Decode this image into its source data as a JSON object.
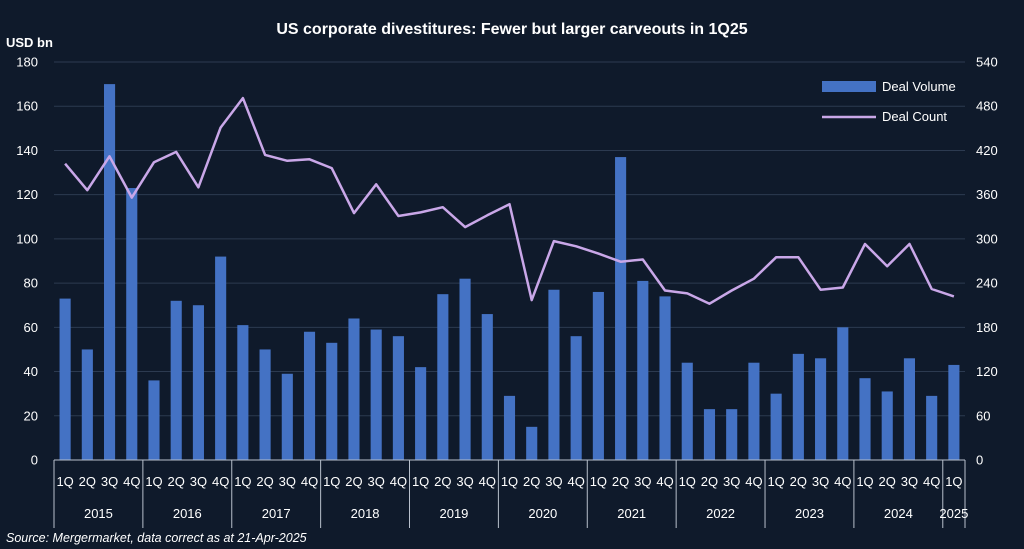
{
  "chart_data": {
    "type": "bar+line",
    "title": "US corporate divestitures: Fewer but larger carveouts in 1Q25",
    "ylabel": "USD bn",
    "ylim": [
      0,
      180
    ],
    "y2lim": [
      0,
      540
    ],
    "yticks": [
      0,
      20,
      40,
      60,
      80,
      100,
      120,
      140,
      160,
      180
    ],
    "y2ticks": [
      0,
      60,
      120,
      180,
      240,
      300,
      360,
      420,
      480,
      540
    ],
    "grid": true,
    "legend_position": "top-right",
    "quarters": [
      "1Q",
      "2Q",
      "3Q",
      "4Q",
      "1Q",
      "2Q",
      "3Q",
      "4Q",
      "1Q",
      "2Q",
      "3Q",
      "4Q",
      "1Q",
      "2Q",
      "3Q",
      "4Q",
      "1Q",
      "2Q",
      "3Q",
      "4Q",
      "1Q",
      "2Q",
      "3Q",
      "4Q",
      "1Q",
      "2Q",
      "3Q",
      "4Q",
      "1Q",
      "2Q",
      "3Q",
      "4Q",
      "1Q",
      "2Q",
      "3Q",
      "4Q",
      "1Q",
      "2Q",
      "3Q",
      "4Q",
      "1Q"
    ],
    "years": [
      "2015",
      "2016",
      "2017",
      "2018",
      "2019",
      "2020",
      "2021",
      "2022",
      "2023",
      "2024",
      "2025"
    ],
    "series": [
      {
        "name": "Deal Volume",
        "kind": "bar",
        "axis": "left",
        "color": "#4472c4",
        "values": [
          73,
          50,
          170,
          123,
          36,
          72,
          70,
          92,
          61,
          50,
          39,
          58,
          53,
          64,
          59,
          56,
          42,
          75,
          82,
          66,
          29,
          15,
          77,
          56,
          76,
          137,
          81,
          74,
          44,
          23,
          23,
          44,
          30,
          48,
          46,
          60,
          37,
          31,
          46,
          29,
          43
        ]
      },
      {
        "name": "Deal Count",
        "kind": "line",
        "axis": "right",
        "color": "#c9a7e8",
        "values": [
          402,
          366,
          412,
          356,
          404,
          418,
          370,
          451,
          491,
          414,
          406,
          408,
          396,
          335,
          374,
          331,
          336,
          343,
          316,
          332,
          347,
          217,
          297,
          290,
          280,
          269,
          272,
          230,
          226,
          212,
          230,
          246,
          275,
          275,
          231,
          234,
          293,
          263,
          293,
          232,
          222
        ]
      }
    ]
  },
  "source": "Source: Mergermarket, data correct as at 21-Apr-2025"
}
